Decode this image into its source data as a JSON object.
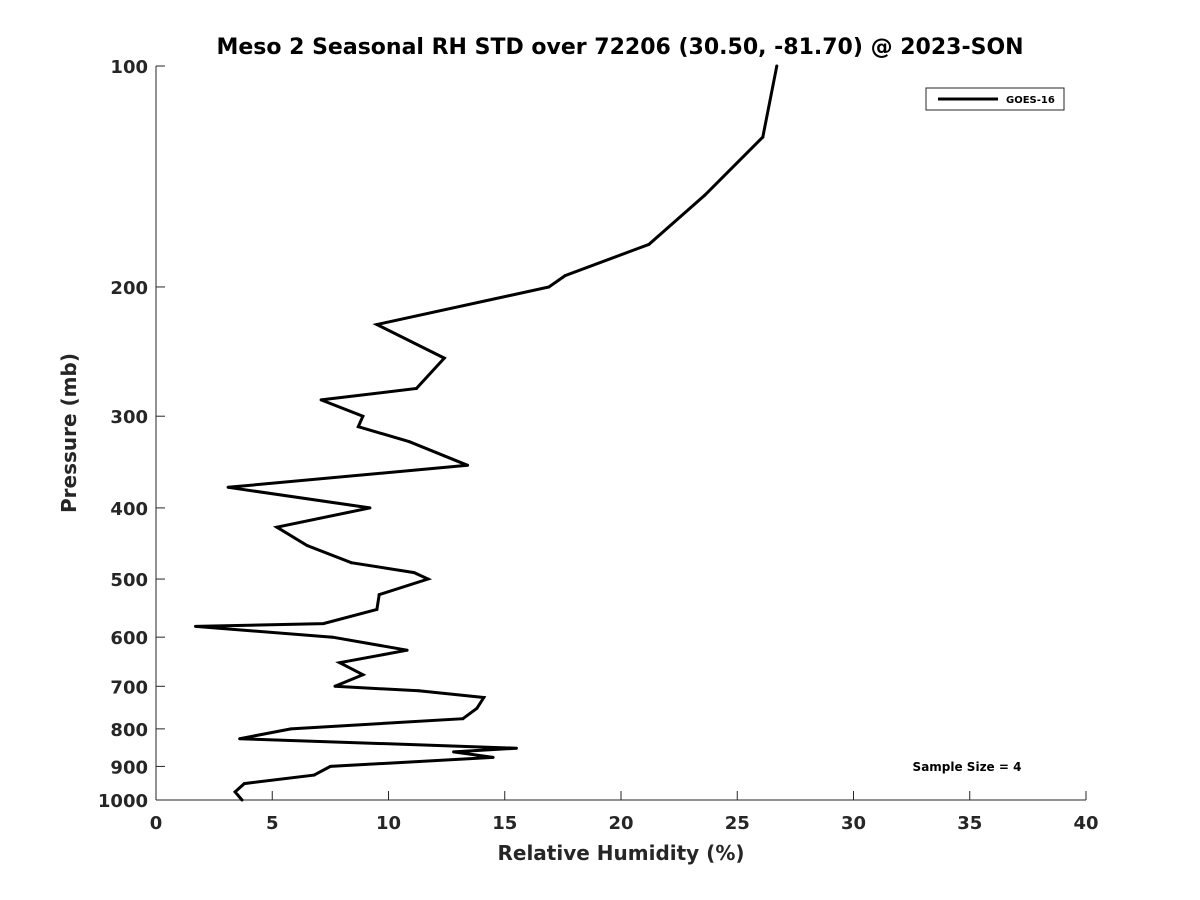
{
  "chart_data": {
    "type": "line",
    "title": "Meso 2 Seasonal RH STD over 72206 (30.50, -81.70) @ 2023-SON",
    "xlabel": "Relative Humidity (%)",
    "ylabel": "Pressure (mb)",
    "xlim": [
      0,
      40
    ],
    "ylim": [
      100,
      1000
    ],
    "y_scale": "log",
    "y_reversed": true,
    "x_ticks": [
      0,
      5,
      10,
      15,
      20,
      25,
      30,
      35,
      40
    ],
    "y_ticks": [
      100,
      200,
      300,
      400,
      500,
      600,
      700,
      800,
      900,
      1000
    ],
    "grid": false,
    "legend_position": "top-right",
    "annotation": "Sample Size = 4",
    "series": [
      {
        "name": "GOES-16",
        "color": "#000000",
        "points": [
          [
            26.7,
            100
          ],
          [
            26.1,
            125
          ],
          [
            23.6,
            150
          ],
          [
            21.2,
            175
          ],
          [
            17.6,
            193
          ],
          [
            16.9,
            200
          ],
          [
            9.5,
            225
          ],
          [
            12.4,
            250
          ],
          [
            11.2,
            275
          ],
          [
            7.1,
            285
          ],
          [
            8.9,
            300
          ],
          [
            8.7,
            310
          ],
          [
            10.9,
            325
          ],
          [
            13.4,
            350
          ],
          [
            3.1,
            375
          ],
          [
            9.2,
            400
          ],
          [
            5.2,
            425
          ],
          [
            6.5,
            450
          ],
          [
            8.4,
            475
          ],
          [
            11.1,
            490
          ],
          [
            11.7,
            500
          ],
          [
            9.6,
            525
          ],
          [
            9.5,
            550
          ],
          [
            7.2,
            575
          ],
          [
            1.7,
            580
          ],
          [
            7.6,
            600
          ],
          [
            10.8,
            625
          ],
          [
            7.9,
            650
          ],
          [
            8.9,
            675
          ],
          [
            7.7,
            700
          ],
          [
            11.3,
            710
          ],
          [
            14.1,
            725
          ],
          [
            13.8,
            750
          ],
          [
            13.2,
            775
          ],
          [
            5.8,
            800
          ],
          [
            3.6,
            825
          ],
          [
            15.5,
            850
          ],
          [
            12.8,
            860
          ],
          [
            14.5,
            875
          ],
          [
            7.5,
            900
          ],
          [
            6.8,
            925
          ],
          [
            3.8,
            950
          ],
          [
            3.4,
            975
          ],
          [
            3.7,
            1000
          ]
        ]
      }
    ]
  }
}
